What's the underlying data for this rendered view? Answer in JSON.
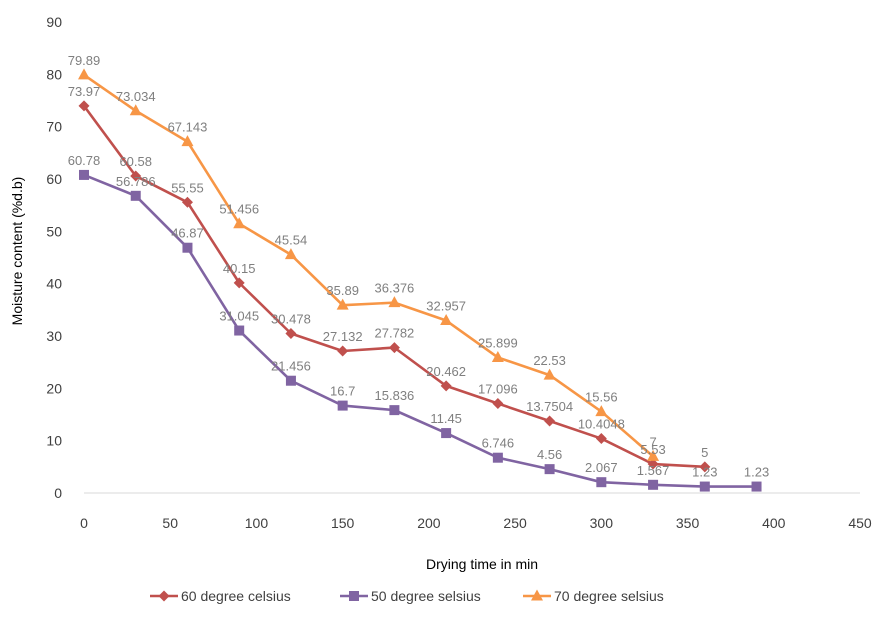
{
  "chart_data": {
    "type": "line",
    "title": "",
    "xlabel": "Drying time in min",
    "ylabel": "Moisture content (%d.b)",
    "xlim": [
      0,
      450
    ],
    "ylim": [
      0,
      90
    ],
    "xticks": [
      0,
      50,
      100,
      150,
      200,
      250,
      300,
      350,
      400,
      450
    ],
    "yticks": [
      0,
      10,
      20,
      30,
      40,
      50,
      60,
      70,
      80,
      90
    ],
    "grid": false,
    "legend_position": "bottom",
    "series": [
      {
        "name": "60 degree celsius",
        "color": "#c0504d",
        "marker": "diamond",
        "x": [
          0,
          30,
          60,
          90,
          120,
          150,
          180,
          210,
          240,
          270,
          300,
          330,
          360
        ],
        "values": [
          73.97,
          60.58,
          55.55,
          40.15,
          30.478,
          27.132,
          27.782,
          20.462,
          17.096,
          13.7504,
          10.4048,
          5.53,
          5
        ],
        "labels": [
          "73.97",
          "60.58",
          "55.55",
          "40.15",
          "30.478",
          "27.132",
          "27.782",
          "20.462",
          "17.096",
          "13.7504",
          "10.4048",
          "5.53",
          "5"
        ]
      },
      {
        "name": "50 degree selsius",
        "color": "#8064a2",
        "marker": "square",
        "x": [
          0,
          30,
          60,
          90,
          120,
          150,
          180,
          210,
          240,
          270,
          300,
          330,
          360,
          390
        ],
        "values": [
          60.78,
          56.786,
          46.87,
          31.045,
          21.456,
          16.7,
          15.836,
          11.45,
          6.746,
          4.56,
          2.067,
          1.567,
          1.23,
          1.23
        ],
        "labels": [
          "60.78",
          "56.786",
          "46.87",
          "31.045",
          "21.456",
          "16.7",
          "15.836",
          "11.45",
          "6.746",
          "4.56",
          "2.067",
          "1.567",
          "1.23",
          "1.23"
        ]
      },
      {
        "name": "70 degree selsius",
        "color": "#f79646",
        "marker": "triangle",
        "x": [
          0,
          30,
          60,
          90,
          120,
          150,
          180,
          210,
          240,
          270,
          300,
          330
        ],
        "values": [
          79.89,
          73.034,
          67.143,
          51.456,
          45.54,
          35.89,
          36.376,
          32.957,
          25.899,
          22.53,
          15.56,
          7
        ],
        "labels": [
          "79.89",
          "73.034",
          "67.143",
          "51.456",
          "45.54",
          "35.89",
          "36.376",
          "32.957",
          "25.899",
          "22.53",
          "15.56",
          "7"
        ]
      }
    ]
  }
}
